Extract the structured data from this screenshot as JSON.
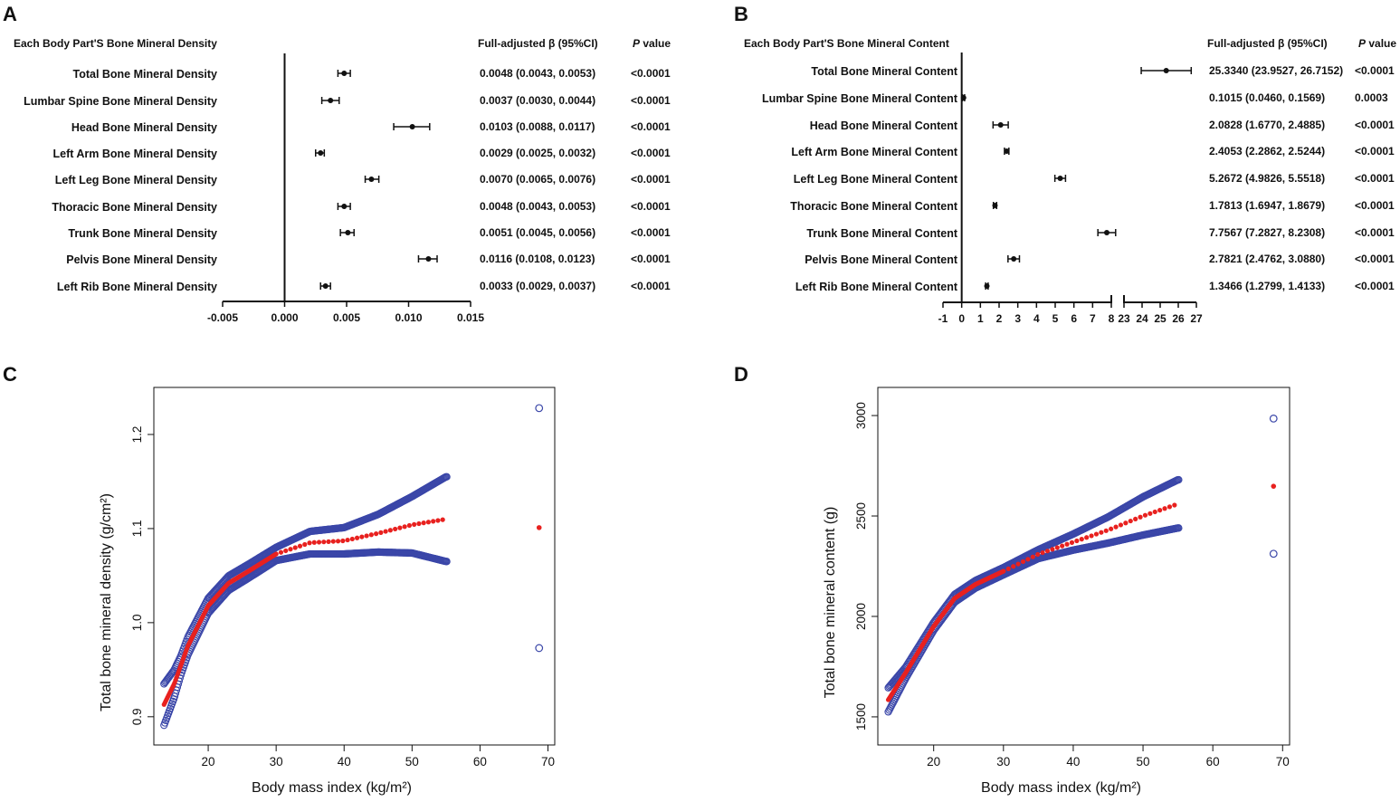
{
  "panels": {
    "A": {
      "letter": "A",
      "header_left": "Each Body Part'S Bone Mineral Density",
      "header_beta": "Full-adjusted β (95%CI)",
      "header_p_italic": "P",
      "header_p_rest": " value"
    },
    "B": {
      "letter": "B",
      "header_left": "Each Body Part'S Bone Mineral Content",
      "header_beta": "Full-adjusted β (95%CI)",
      "header_p_italic": "P",
      "header_p_rest": " value"
    },
    "C": {
      "letter": "C"
    },
    "D": {
      "letter": "D"
    }
  },
  "chart_data": [
    {
      "type": "forest",
      "panel": "A",
      "xlim": [
        -0.005,
        0.015
      ],
      "ticks": [
        "-0.005",
        "0.000",
        "0.005",
        "0.010",
        "0.015"
      ],
      "tick_values": [
        -0.005,
        0,
        0.005,
        0.01,
        0.015
      ],
      "reference_line": 0,
      "rows": [
        {
          "label": "Total Bone Mineral Density",
          "beta": 0.0048,
          "lo": 0.0043,
          "hi": 0.0053,
          "text": "0.0048 (0.0043, 0.0053)",
          "p": "<0.0001"
        },
        {
          "label": "Lumbar Spine Bone Mineral Density",
          "beta": 0.0037,
          "lo": 0.003,
          "hi": 0.0044,
          "text": "0.0037 (0.0030, 0.0044)",
          "p": "<0.0001"
        },
        {
          "label": "Head Bone Mineral Density",
          "beta": 0.0103,
          "lo": 0.0088,
          "hi": 0.0117,
          "text": "0.0103 (0.0088, 0.0117)",
          "p": "<0.0001"
        },
        {
          "label": "Left Arm Bone Mineral Density",
          "beta": 0.0029,
          "lo": 0.0025,
          "hi": 0.0032,
          "text": "0.0029 (0.0025, 0.0032)",
          "p": "<0.0001"
        },
        {
          "label": "Left Leg Bone Mineral Density",
          "beta": 0.007,
          "lo": 0.0065,
          "hi": 0.0076,
          "text": "0.0070 (0.0065, 0.0076)",
          "p": "<0.0001"
        },
        {
          "label": "Thoracic  Bone Mineral Density",
          "beta": 0.0048,
          "lo": 0.0043,
          "hi": 0.0053,
          "text": "0.0048 (0.0043, 0.0053)",
          "p": "<0.0001"
        },
        {
          "label": "Trunk Bone Mineral Density",
          "beta": 0.0051,
          "lo": 0.0045,
          "hi": 0.0056,
          "text": "0.0051 (0.0045, 0.0056)",
          "p": "<0.0001"
        },
        {
          "label": "Pelvis Bone Mineral Density",
          "beta": 0.0116,
          "lo": 0.0108,
          "hi": 0.0123,
          "text": "0.0116 (0.0108, 0.0123)",
          "p": "<0.0001"
        },
        {
          "label": "Left Rib Bone Mineral Density",
          "beta": 0.0033,
          "lo": 0.0029,
          "hi": 0.0037,
          "text": "0.0033 (0.0029, 0.0037)",
          "p": "<0.0001"
        }
      ]
    },
    {
      "type": "forest",
      "panel": "B",
      "xlim_segment1": [
        -1,
        8
      ],
      "xlim_segment2": [
        23,
        27
      ],
      "ticks_segment1": [
        "-1",
        "0",
        "1",
        "2",
        "3",
        "4",
        "5",
        "6",
        "7",
        "8"
      ],
      "ticks_segment2": [
        "23",
        "24",
        "25",
        "26",
        "27"
      ],
      "reference_line": 0,
      "rows": [
        {
          "label": "Total Bone Mineral Content",
          "beta": 25.334,
          "lo": 23.9527,
          "hi": 26.7152,
          "text": "25.3340 (23.9527, 26.7152)",
          "p": "<0.0001"
        },
        {
          "label": "Lumbar Spine Bone Mineral Content",
          "beta": 0.1015,
          "lo": 0.046,
          "hi": 0.1569,
          "text": "0.1015 (0.0460, 0.1569)",
          "p": "0.0003"
        },
        {
          "label": "Head Bone Mineral Content",
          "beta": 2.0828,
          "lo": 1.677,
          "hi": 2.4885,
          "text": "2.0828 (1.6770, 2.4885)",
          "p": "<0.0001"
        },
        {
          "label": "Left Arm Bone Mineral Content",
          "beta": 2.4053,
          "lo": 2.2862,
          "hi": 2.5244,
          "text": "2.4053 (2.2862, 2.5244)",
          "p": "<0.0001"
        },
        {
          "label": "Left Leg Bone Mineral Content",
          "beta": 5.2672,
          "lo": 4.9826,
          "hi": 5.5518,
          "text": "5.2672 (4.9826, 5.5518)",
          "p": "<0.0001"
        },
        {
          "label": "Thoracic  Bone Mineral  Content",
          "beta": 1.7813,
          "lo": 1.6947,
          "hi": 1.8679,
          "text": "1.7813 (1.6947, 1.8679)",
          "p": "<0.0001"
        },
        {
          "label": "Trunk Bone Mineral Content",
          "beta": 7.7567,
          "lo": 7.2827,
          "hi": 8.2308,
          "text": "7.7567 (7.2827, 8.2308)",
          "p": "<0.0001"
        },
        {
          "label": "Pelvis Bone Mineral Content",
          "beta": 2.7821,
          "lo": 2.4762,
          "hi": 3.088,
          "text": "2.7821 (2.4762, 3.0880)",
          "p": "<0.0001"
        },
        {
          "label": "Left Rib Bone Mineral   Content",
          "beta": 1.3466,
          "lo": 1.2799,
          "hi": 1.4133,
          "text": "1.3466 (1.2799, 1.4133)",
          "p": "<0.0001"
        }
      ]
    },
    {
      "type": "scatter",
      "panel": "C",
      "xlabel": "Body mass index (kg/m²)",
      "ylabel": "Total bone mineral density (g/cm²)",
      "xlim": [
        12,
        71
      ],
      "ylim": [
        0.87,
        1.25
      ],
      "xticks": [
        20,
        30,
        40,
        50,
        60,
        70
      ],
      "yticks": [
        0.9,
        1.0,
        1.1,
        1.2
      ],
      "ytick_labels": [
        "0.9",
        "1.0",
        "1.1",
        "1.2"
      ],
      "fit_knots": [
        [
          13.5,
          0.913
        ],
        [
          15,
          0.935
        ],
        [
          17,
          0.975
        ],
        [
          20,
          1.018
        ],
        [
          23,
          1.042
        ],
        [
          26,
          1.055
        ],
        [
          30,
          1.073
        ],
        [
          35,
          1.085
        ],
        [
          40,
          1.087
        ],
        [
          45,
          1.095
        ],
        [
          50,
          1.104
        ],
        [
          55,
          1.11
        ]
      ],
      "ci_width_knots": [
        [
          13.5,
          0.022
        ],
        [
          16,
          0.01
        ],
        [
          20,
          0.008
        ],
        [
          30,
          0.007
        ],
        [
          35,
          0.012
        ],
        [
          40,
          0.014
        ],
        [
          45,
          0.02
        ],
        [
          50,
          0.03
        ],
        [
          55,
          0.045
        ]
      ],
      "outlier": {
        "x": 68.7,
        "fit": 1.101,
        "upper": 1.228,
        "lower": 0.973
      }
    },
    {
      "type": "scatter",
      "panel": "D",
      "xlabel": "Body mass index (kg/m²)",
      "ylabel": "Total bone mineral content (g)",
      "xlim": [
        12,
        71
      ],
      "ylim": [
        1360,
        3140
      ],
      "xticks": [
        20,
        30,
        40,
        50,
        60,
        70
      ],
      "yticks": [
        1500,
        2000,
        2500,
        3000
      ],
      "ytick_labels": [
        "1500",
        "2000",
        "2500",
        "3000"
      ],
      "fit_knots": [
        [
          13.5,
          1585
        ],
        [
          16,
          1720
        ],
        [
          20,
          1950
        ],
        [
          23,
          2090
        ],
        [
          26,
          2160
        ],
        [
          30,
          2225
        ],
        [
          35,
          2310
        ],
        [
          40,
          2370
        ],
        [
          45,
          2430
        ],
        [
          50,
          2500
        ],
        [
          55,
          2560
        ]
      ],
      "ci_width_knots": [
        [
          13.5,
          60
        ],
        [
          16,
          28
        ],
        [
          20,
          20
        ],
        [
          30,
          18
        ],
        [
          35,
          22
        ],
        [
          40,
          40
        ],
        [
          45,
          65
        ],
        [
          50,
          95
        ],
        [
          55,
          120
        ]
      ],
      "outlier": {
        "x": 68.7,
        "fit": 2648,
        "upper": 2985,
        "lower": 2312
      }
    }
  ],
  "colors": {
    "ink": "#111111",
    "fit": "#e8211f",
    "ci": "#3a46a8"
  }
}
